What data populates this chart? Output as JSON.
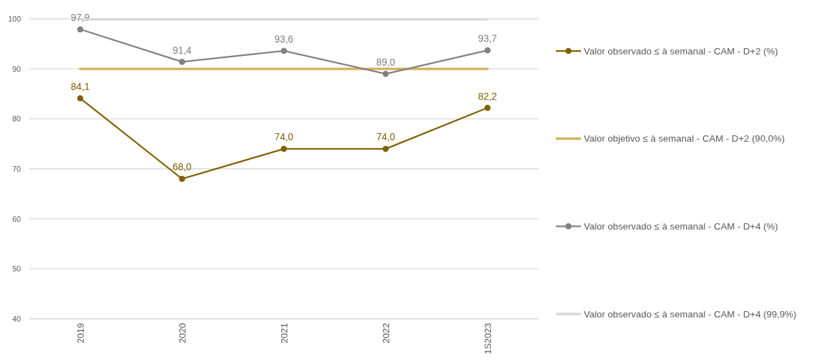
{
  "chart_data": {
    "type": "line",
    "categories": [
      "2019",
      "2020",
      "2021",
      "2022",
      "1S2023"
    ],
    "series": [
      {
        "name": "Valor observado ≤ à semanal - CAM - D+2 (%)",
        "color": "#7f6000",
        "values": [
          84.1,
          68.0,
          74.0,
          74.0,
          82.2
        ],
        "marker": "circle",
        "value_labels": [
          "84,1",
          "68,0",
          "74,0",
          "74,0",
          "82,2"
        ]
      },
      {
        "name": "Valor objetivo ≤ à semanal - CAM - D+2 (90,0%)",
        "color": "#d6b25e",
        "values": [
          90,
          90,
          90,
          90,
          90
        ],
        "marker": "none"
      },
      {
        "name": "Valor observado ≤ à semanal - CAM - D+4 (%)",
        "color": "#808080",
        "values": [
          97.9,
          91.4,
          93.6,
          89.0,
          93.7
        ],
        "marker": "circle",
        "value_labels": [
          "97,9",
          "91,4",
          "93,6",
          "89,0",
          "93,7"
        ]
      },
      {
        "name": "Valor observado ≤ à semanal - CAM - D+4 (99,9%)",
        "color": "#d9d9d9",
        "values": [
          99.9,
          99.9,
          99.9,
          99.9,
          99.9
        ],
        "marker": "none"
      }
    ],
    "ylim": [
      40,
      100
    ],
    "yticks": [
      40,
      50,
      60,
      70,
      80,
      90,
      100
    ],
    "grid": "y",
    "legend": "right"
  }
}
